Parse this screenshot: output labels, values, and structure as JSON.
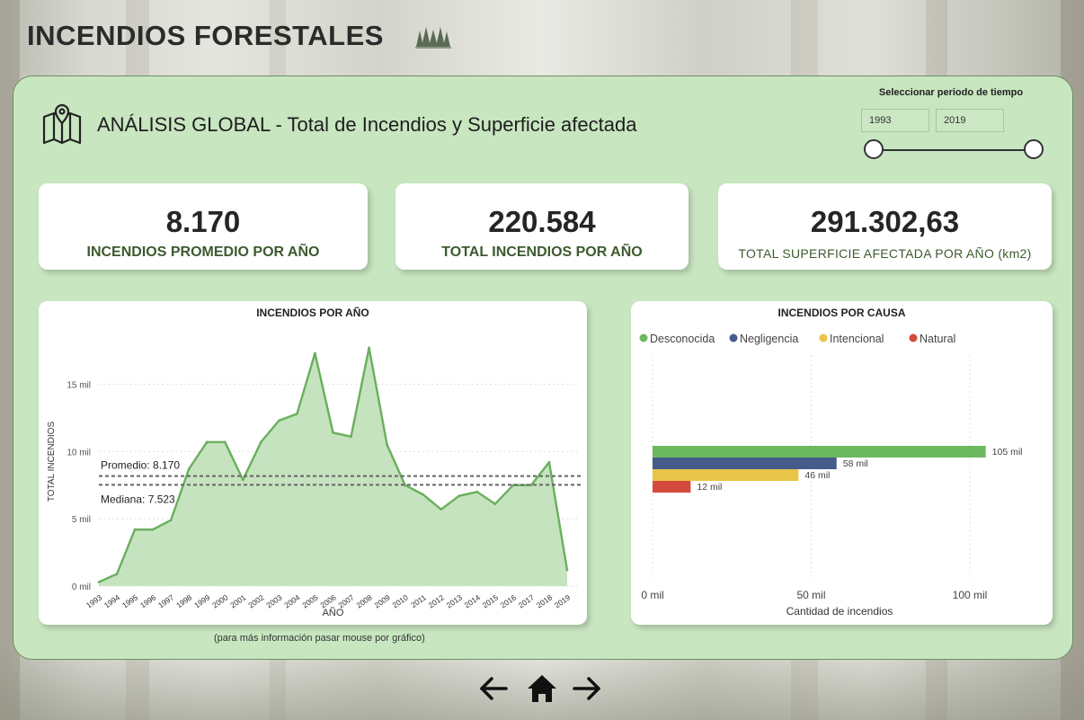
{
  "header": {
    "title": "INCENDIOS FORESTALES",
    "icon": "pine-trees-icon"
  },
  "section": {
    "title": "ANÁLISIS GLOBAL - Total de Incendios y Superficie afectada",
    "icon": "map-pin-icon"
  },
  "period": {
    "label": "Seleccionar periodo de tiempo",
    "start": "1993",
    "end": "2019"
  },
  "kpis": [
    {
      "value": "8.170",
      "label": "INCENDIOS PROMEDIO POR AÑO"
    },
    {
      "value": "220.584",
      "label": "TOTAL INCENDIOS POR AÑO"
    },
    {
      "value": "291.302,63",
      "label": "TOTAL SUPERFICIE AFECTADA POR AÑO (km2)"
    }
  ],
  "line_chart": {
    "title": "INCENDIOS POR AÑO",
    "xlabel": "AÑO",
    "ylabel": "TOTAL INCENDIOS",
    "promedio_label": "Promedio: 8.170",
    "mediana_label": "Mediana: 7.523",
    "footnote": "(para más información pasar mouse por gráfico)"
  },
  "bar_chart": {
    "title": "INCENDIOS POR CAUSA",
    "xlabel": "Cantidad de incendios"
  },
  "nav": {
    "back_icon": "arrow-left-icon",
    "home_icon": "home-icon",
    "next_icon": "arrow-right-icon"
  },
  "chart_data": [
    {
      "type": "area",
      "title": "INCENDIOS POR AÑO",
      "xlabel": "AÑO",
      "ylabel": "TOTAL INCENDIOS",
      "x": [
        "1993",
        "1994",
        "1995",
        "1996",
        "1997",
        "1998",
        "1999",
        "2000",
        "2001",
        "2002",
        "2003",
        "2004",
        "2005",
        "2006",
        "2007",
        "2008",
        "2009",
        "2010",
        "2011",
        "2012",
        "2013",
        "2014",
        "2015",
        "2016",
        "2017",
        "2018",
        "2019"
      ],
      "values": [
        300,
        900,
        4200,
        4200,
        4900,
        8700,
        10700,
        10700,
        7900,
        10700,
        12300,
        12800,
        17300,
        11400,
        11100,
        17700,
        10500,
        7500,
        6800,
        5700,
        6700,
        7000,
        6100,
        7500,
        7500,
        9200,
        1200
      ],
      "yticks": [
        0,
        5000,
        10000,
        15000
      ],
      "ytick_labels": [
        "0 mil",
        "5 mil",
        "10 mil",
        "15 mil"
      ],
      "ylim": [
        0,
        18500
      ],
      "reference_lines": [
        {
          "name": "Promedio",
          "value": 8170,
          "label": "Promedio: 8.170"
        },
        {
          "name": "Mediana",
          "value": 7523,
          "label": "Mediana: 7.523"
        }
      ],
      "color": "#6aaf5e",
      "grid": true
    },
    {
      "type": "bar",
      "orientation": "horizontal",
      "title": "INCENDIOS POR CAUSA",
      "xlabel": "Cantidad de incendios",
      "categories": [
        "Desconocida",
        "Negligencia",
        "Intencional",
        "Natural"
      ],
      "values": [
        105000,
        58000,
        46000,
        12000
      ],
      "value_labels": [
        "105 mil",
        "58 mil",
        "46 mil",
        "12 mil"
      ],
      "colors": [
        "#6cb85e",
        "#465a8c",
        "#e8c548",
        "#d44a3c"
      ],
      "xticks": [
        0,
        50000,
        100000
      ],
      "xtick_labels": [
        "0 mil",
        "50 mil",
        "100 mil"
      ],
      "xlim": [
        0,
        110000
      ],
      "legend": "top-left",
      "grid": true
    }
  ]
}
